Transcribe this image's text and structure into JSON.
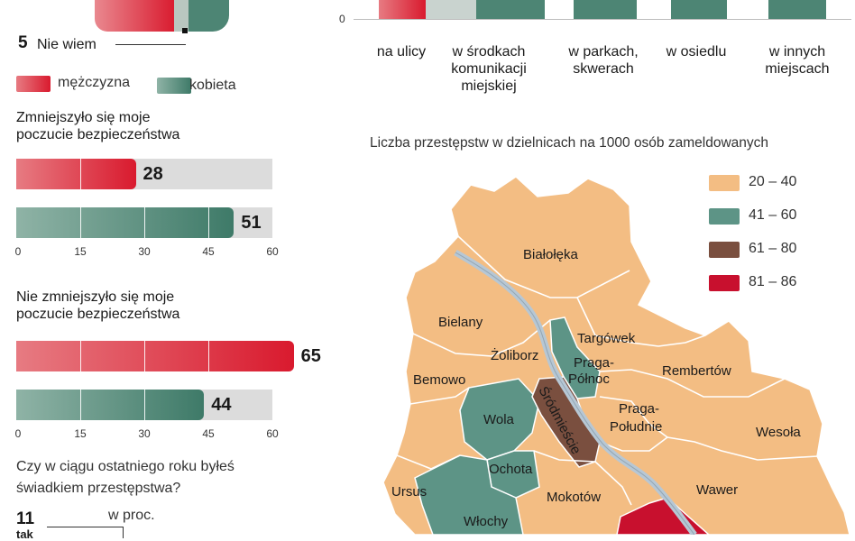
{
  "colors": {
    "red": "#d91a2e",
    "green": "#3e7a68",
    "orange": "#f3bd83",
    "teal": "#5d9486",
    "brown": "#7a4f3f",
    "crimson": "#c8102e"
  },
  "top_left": {
    "nie_wiem_value": "5",
    "nie_wiem_label": "Nie wiem"
  },
  "legend_gender": {
    "male": "mężczyzna",
    "female": "kobieta"
  },
  "top_chart": {
    "axis_zero": "0",
    "categories": [
      {
        "text": "na ulicy"
      },
      {
        "text": "w środkach komunikacji miejskiej"
      },
      {
        "text": "w parkach, skwerach"
      },
      {
        "text": "w osiedlu"
      },
      {
        "text": "w innych miejscach"
      }
    ]
  },
  "chart_data": [
    {
      "type": "bar",
      "title": "Zmniejszyło się moje poczucie bezpieczeństwa",
      "categories": [
        "mężczyzna",
        "kobieta"
      ],
      "values": [
        28,
        51
      ],
      "value_labels": [
        "28",
        "51"
      ],
      "xlim": [
        0,
        60
      ],
      "ticks": [
        "0",
        "15",
        "30",
        "45",
        "60"
      ]
    },
    {
      "type": "bar",
      "title": "Nie zmniejszyło się moje poczucie bezpieczeństwa",
      "categories": [
        "mężczyzna",
        "kobieta"
      ],
      "values": [
        65,
        44
      ],
      "value_labels": [
        "65",
        "44"
      ],
      "xlim": [
        0,
        60
      ],
      "ticks": [
        "0",
        "15",
        "30",
        "45",
        "60"
      ]
    }
  ],
  "question": {
    "text_line1": "Czy w ciągu ostatniego roku byłeś",
    "text_line2": "świadkiem przestępstwa?",
    "unit": "w proc.",
    "value": "11",
    "answer": "tak"
  },
  "map": {
    "title": "Liczba przestępstw w dzielnicach na 1000 osób zameldowanych",
    "legend": [
      {
        "label": "20 – 40",
        "color": "#f3bd83"
      },
      {
        "label": "41 – 60",
        "color": "#5d9486"
      },
      {
        "label": "61 – 80",
        "color": "#7a4f3f"
      },
      {
        "label": "81 – 86",
        "color": "#c8102e"
      }
    ],
    "districts": {
      "bialoleka": "Białołęka",
      "bielany": "Bielany",
      "targowek": "Targówek",
      "zoliborz": "Żoliborz",
      "praga_polnoc": "Praga-Północ",
      "bemowo": "Bemowo",
      "rembertow": "Rembertów",
      "srodmiescie": "Śródmieście",
      "praga_poludnie": "Praga-Południe",
      "wola": "Wola",
      "wesola": "Wesoła",
      "ochota": "Ochota",
      "wawer": "Wawer",
      "ursus": "Ursus",
      "mokotow": "Mokotów",
      "wlochy": "Włochy"
    }
  }
}
